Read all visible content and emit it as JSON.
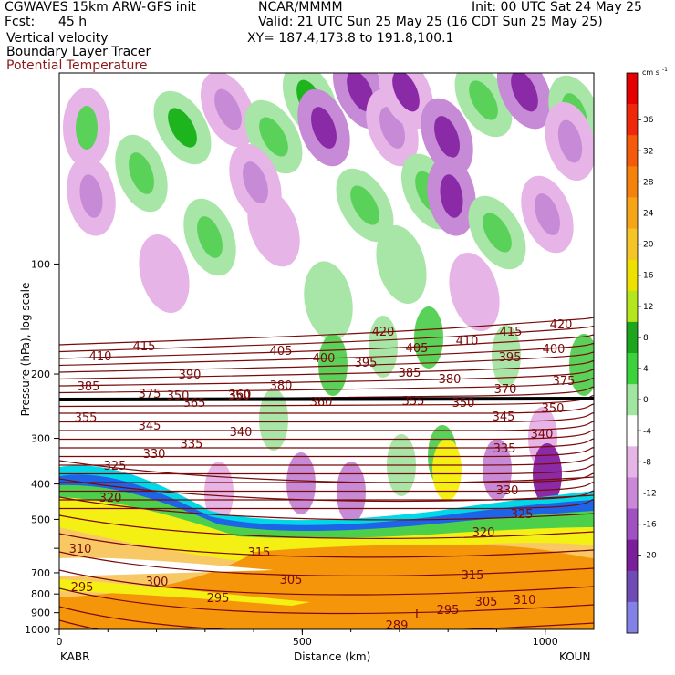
{
  "header": {
    "title": "CGWAVES 15km ARW-GFS init",
    "source": "NCAR/MMMM",
    "init": "Init: 00 UTC Sat 24 May 25",
    "fcst_label": "Fcst:",
    "fcst_value": "45 h",
    "valid": "Valid: 21 UTC Sun 25 May 25 (16 CDT Sun 25 May 25)",
    "field1": "Vertical velocity",
    "field2": "Boundary Layer Tracer",
    "field3": "Potential Temperature",
    "xy": "XY= 187.4,173.8 to 191.8,100.1"
  },
  "colors": {
    "theta": "#7a0a0a",
    "theta_label": "#7a0a0a"
  },
  "chart_data": {
    "type": "heatmap",
    "xlabel": "Distance (km)",
    "ylabel": "Pressure (hPa), log scale",
    "x_start_label": "KABR",
    "x_end_label": "KOUN",
    "xlim": [
      0,
      1100
    ],
    "ylim": [
      1000,
      30
    ],
    "y_scale": "log",
    "x_ticks": [
      0,
      500,
      1000
    ],
    "y_ticks": [
      100,
      200,
      300,
      400,
      500,
      600,
      700,
      800,
      900,
      1000
    ],
    "y_tick_labels": [
      "100",
      "200",
      "300",
      "400",
      "500",
      "",
      "700",
      "800",
      "900",
      "1000"
    ],
    "colorbar": {
      "unit": "cm s",
      "unit_exp": "-1",
      "labels": [
        36,
        32,
        28,
        24,
        20,
        16,
        12,
        8,
        4,
        0,
        -4,
        -8,
        -12,
        -16,
        -20
      ],
      "colors": [
        "#e50000",
        "#f0280a",
        "#f55a0a",
        "#f5820a",
        "#f5a516",
        "#f5c528",
        "#eee000",
        "#b4e61e",
        "#1ea51e",
        "#3cd23c",
        "#a0e6a0",
        "#ffffff",
        "#e6b4e6",
        "#cc88d8",
        "#a050c0",
        "#7a1e9a",
        "#6e4cb4",
        "#8282e6"
      ]
    },
    "theta_labels": [
      "420",
      "415",
      "420",
      "410",
      "415",
      "405",
      "410",
      "400",
      "405",
      "400",
      "395",
      "395",
      "390",
      "385",
      "380",
      "380",
      "375",
      "385",
      "375",
      "370",
      "350",
      "350",
      "365",
      "360",
      "360",
      "355",
      "350",
      "350",
      "355",
      "345",
      "345",
      "340",
      "340",
      "330",
      "335",
      "335",
      "325",
      "330",
      "320",
      "325",
      "320",
      "310",
      "315",
      "315",
      "300",
      "305",
      "305",
      "310",
      "295",
      "295",
      "295",
      "289"
    ],
    "low_marker": "L"
  }
}
